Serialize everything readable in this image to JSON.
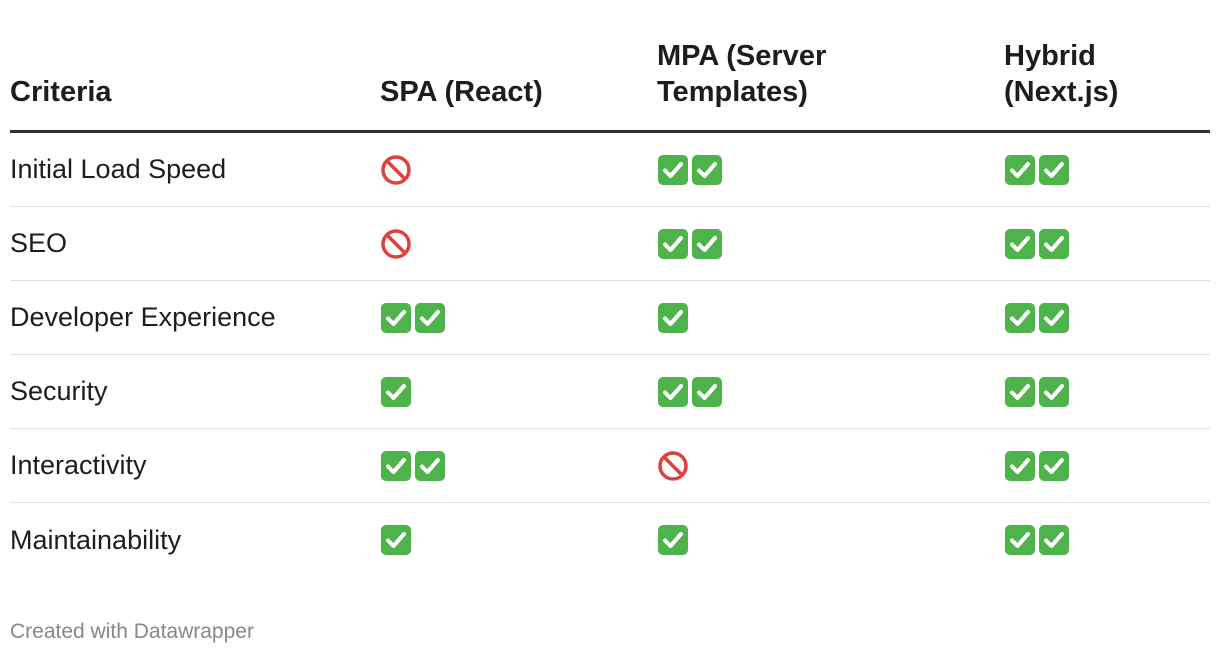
{
  "chart_data": {
    "type": "table",
    "columns": [
      "Criteria",
      "SPA (React)",
      "MPA (Server Templates)",
      "Hybrid (Next.js)"
    ],
    "rows": [
      {
        "criteria": "Initial Load Speed",
        "values": [
          "🚫",
          "✅✅",
          "✅✅"
        ]
      },
      {
        "criteria": "SEO",
        "values": [
          "🚫",
          "✅✅",
          "✅✅"
        ]
      },
      {
        "criteria": "Developer Experience",
        "values": [
          "✅✅",
          "✅",
          "✅✅"
        ]
      },
      {
        "criteria": "Security",
        "values": [
          "✅",
          "✅✅",
          "✅✅"
        ]
      },
      {
        "criteria": "Interactivity",
        "values": [
          "✅✅",
          "🚫",
          "✅✅"
        ]
      },
      {
        "criteria": "Maintainability",
        "values": [
          "✅",
          "✅",
          "✅✅"
        ]
      }
    ],
    "header_lines": [
      [
        "Criteria"
      ],
      [
        "SPA (React)"
      ],
      [
        "MPA (Server",
        "Templates)"
      ],
      [
        "Hybrid",
        "(Next.js)"
      ]
    ]
  },
  "footer": {
    "credit": "Created with Datawrapper"
  },
  "colors": {
    "check_green": "#4db34a",
    "no_red": "#e0403c",
    "header_rule": "#333333",
    "row_rule": "#e1e1e1",
    "footer_text": "#888888"
  },
  "icons": {
    "check": "check-mark-button-icon",
    "no": "prohibited-icon"
  }
}
